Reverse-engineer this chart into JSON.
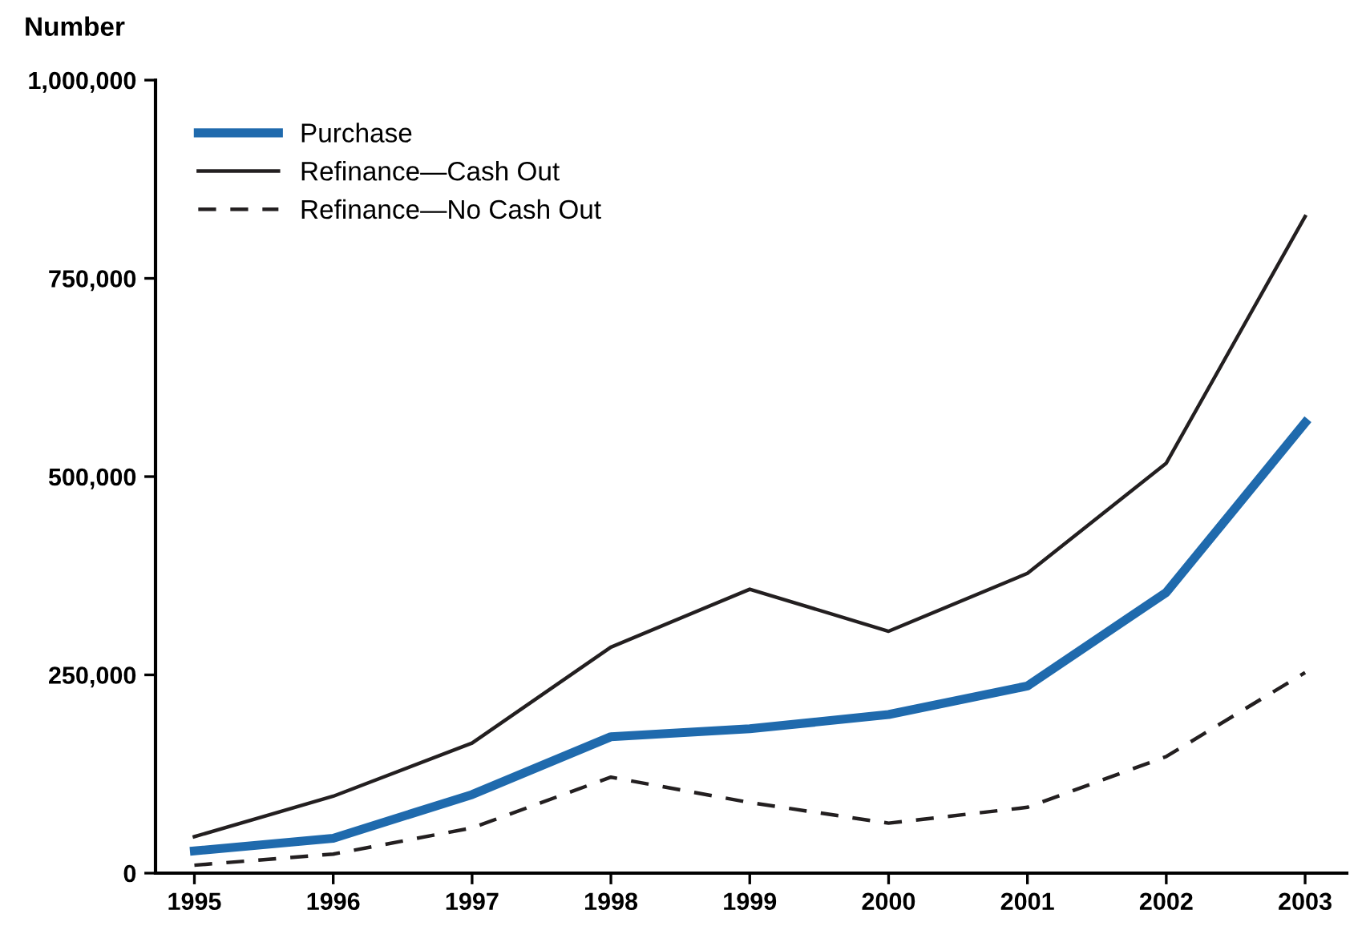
{
  "chart_data": {
    "type": "line",
    "ylabel": "Number",
    "x": [
      1995,
      1996,
      1997,
      1998,
      1999,
      2000,
      2001,
      2002,
      2003
    ],
    "series": [
      {
        "name": "Purchase",
        "color": "#1f6aad",
        "line_style": "solid",
        "values": [
          28000,
          44000,
          99000,
          172000,
          182000,
          200000,
          236000,
          354000,
          568000
        ]
      },
      {
        "name": "Refinance—Cash Out",
        "color": "#231f20",
        "line_style": "solid",
        "values": [
          46000,
          97000,
          164000,
          285000,
          358000,
          305000,
          378000,
          517000,
          828000
        ]
      },
      {
        "name": "Refinance—No Cash Out",
        "color": "#231f20",
        "line_style": "dashed",
        "values": [
          10000,
          24000,
          57000,
          121000,
          89000,
          63000,
          83000,
          147000,
          253000
        ]
      }
    ],
    "xlim": [
      1994.72,
      2003.3
    ],
    "xticks": [
      1995,
      1996,
      1997,
      1998,
      1999,
      2000,
      2001,
      2002,
      2003
    ],
    "ylim": [
      0,
      1000000
    ],
    "yticks": [
      {
        "value": 0,
        "label": "0"
      },
      {
        "value": 250000,
        "label": "250,000"
      },
      {
        "value": 500000,
        "label": "500,000"
      },
      {
        "value": 750000,
        "label": "750,000"
      },
      {
        "value": 1000000,
        "label": "1,000,000"
      }
    ],
    "grid": false,
    "legend": "top left",
    "marker": "none"
  }
}
